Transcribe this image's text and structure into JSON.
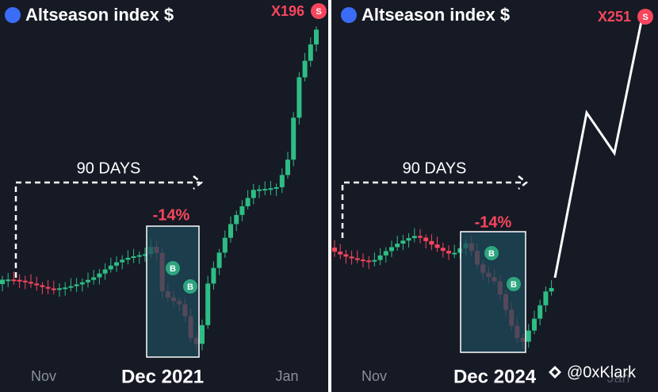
{
  "panels": [
    {
      "title": "Altseason index $",
      "multiplier": "X196",
      "badge": "S",
      "period": "90 DAYS",
      "change": "-14%",
      "markers": [
        "B",
        "B"
      ],
      "x_labels": [
        "Nov",
        "Dec 2021",
        "Jan"
      ]
    },
    {
      "title": "Altseason index $",
      "multiplier": "X251",
      "badge": "S",
      "period": "90 DAYS",
      "change": "-14%",
      "markers": [
        "B",
        "B"
      ],
      "x_labels": [
        "Nov",
        "Dec 2024",
        "Jan"
      ]
    }
  ],
  "watermark": "@0xKlark"
}
